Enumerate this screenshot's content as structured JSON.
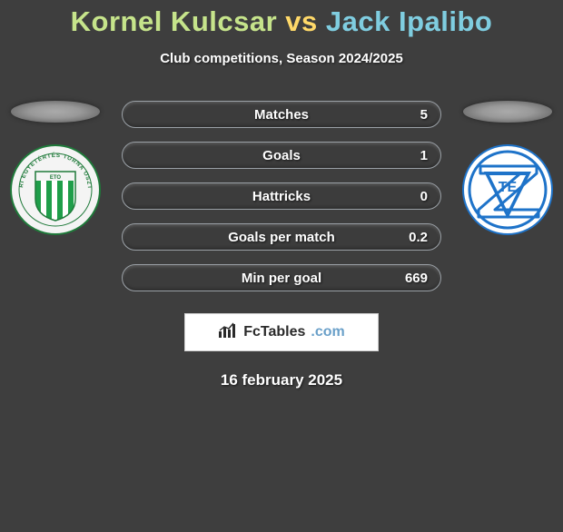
{
  "title": {
    "player1": "Kornel Kulcsar",
    "vs": "vs",
    "player2": "Jack Ipalibo",
    "fontsize": 31,
    "color_p1": "#c6e48b",
    "color_vs": "#ffd969",
    "color_p2": "#7fcde0"
  },
  "subtitle": {
    "text": "Club competitions, Season 2024/2025",
    "fontsize": 15
  },
  "background_color": "#3e3e3e",
  "stats": {
    "bar_border_color": "#9aa0a6",
    "bar_bg": "#3c3c3c",
    "fill_left_color": "#a4cd5a",
    "fill_right_color": "#5aaac9",
    "text_color": "#ffffff",
    "label_fontsize": 15,
    "rows": [
      {
        "label": "Matches",
        "left_val": "",
        "right_val": "5",
        "left_pct": 0,
        "right_pct": 0
      },
      {
        "label": "Goals",
        "left_val": "",
        "right_val": "1",
        "left_pct": 0,
        "right_pct": 0
      },
      {
        "label": "Hattricks",
        "left_val": "",
        "right_val": "0",
        "left_pct": 0,
        "right_pct": 0
      },
      {
        "label": "Goals per match",
        "left_val": "",
        "right_val": "0.2",
        "left_pct": 0,
        "right_pct": 0
      },
      {
        "label": "Min per goal",
        "left_val": "",
        "right_val": "669",
        "left_pct": 0,
        "right_pct": 0
      }
    ]
  },
  "badges": {
    "left": {
      "outer_ring_bg": "#f2f2f2",
      "outer_ring_border": "#1f7a3a",
      "inner_stripes": [
        "#1f9e4a",
        "#ffffff"
      ],
      "text_top": "GYŐRI EGYETÉRTÉS",
      "text_bottom": "TORNA OSZTÁLY"
    },
    "right": {
      "bg": "#ffffff",
      "accent": "#1e73c9",
      "text": "TE",
      "letter_z": "Z"
    }
  },
  "brand": {
    "icon_name": "bar-chart-icon",
    "name": "FcTables",
    "suffix": ".com"
  },
  "date": "16 february 2025"
}
